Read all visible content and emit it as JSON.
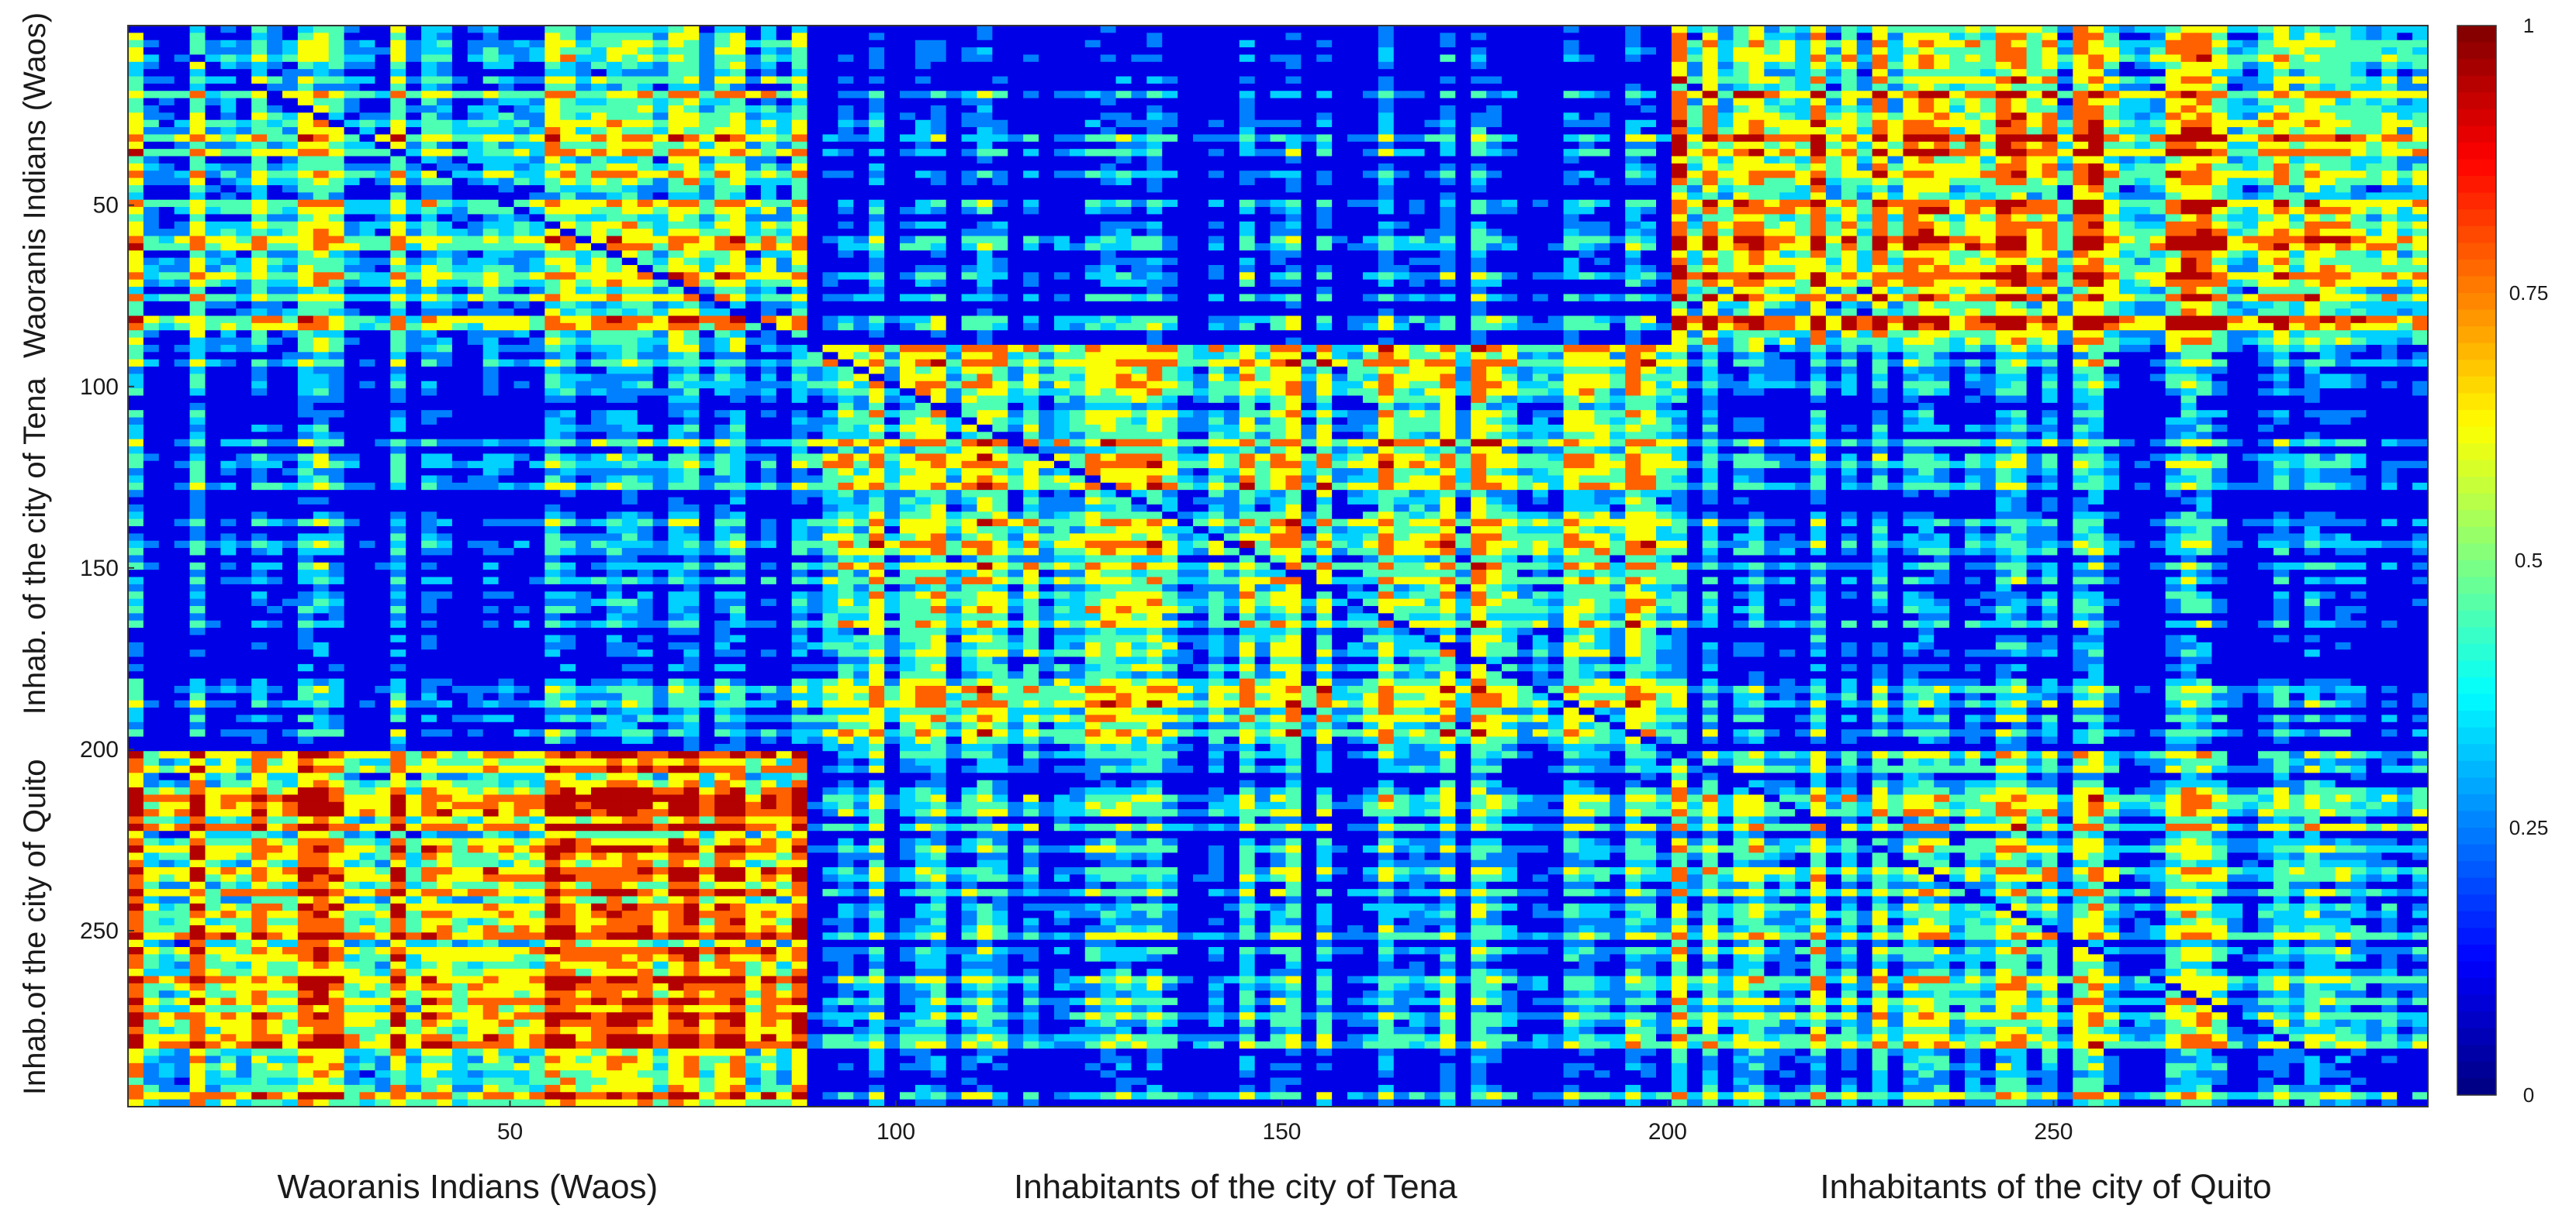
{
  "chart_data": {
    "type": "heatmap",
    "title": "",
    "n": 298,
    "colormap": "jet",
    "color_range": [
      0,
      1
    ],
    "x_ticks": [
      50,
      100,
      150,
      200,
      250
    ],
    "y_ticks": [
      50,
      100,
      150,
      200,
      250
    ],
    "x_tick_labels": [
      "50",
      "100",
      "150",
      "200",
      "250"
    ],
    "y_tick_labels": [
      "50",
      "100",
      "150",
      "200",
      "250"
    ],
    "colorbar_ticks": [
      0,
      0.25,
      0.5,
      0.75,
      1
    ],
    "colorbar_tick_labels": [
      "0",
      "0.25",
      "0.5",
      "0.75",
      "1"
    ],
    "groups": [
      {
        "name": "Waoranis Indians (Waos)",
        "y_label": "Waoranis Indians (Waos)",
        "range": [
          1,
          88
        ]
      },
      {
        "name": "Inhabitants of the city of Tena",
        "y_label": "Inhab. of the city of Tena",
        "range": [
          89,
          199
        ]
      },
      {
        "name": "Inhabitants of the city of Quito",
        "y_label": "Inhab.of the city of Quito",
        "range": [
          200,
          298
        ]
      }
    ],
    "block_typical_values": [
      [
        0.4,
        0.1,
        0.6
      ],
      [
        0.1,
        0.45,
        0.15
      ],
      [
        0.6,
        0.2,
        0.35
      ]
    ],
    "diagonal_value": 0.1
  }
}
